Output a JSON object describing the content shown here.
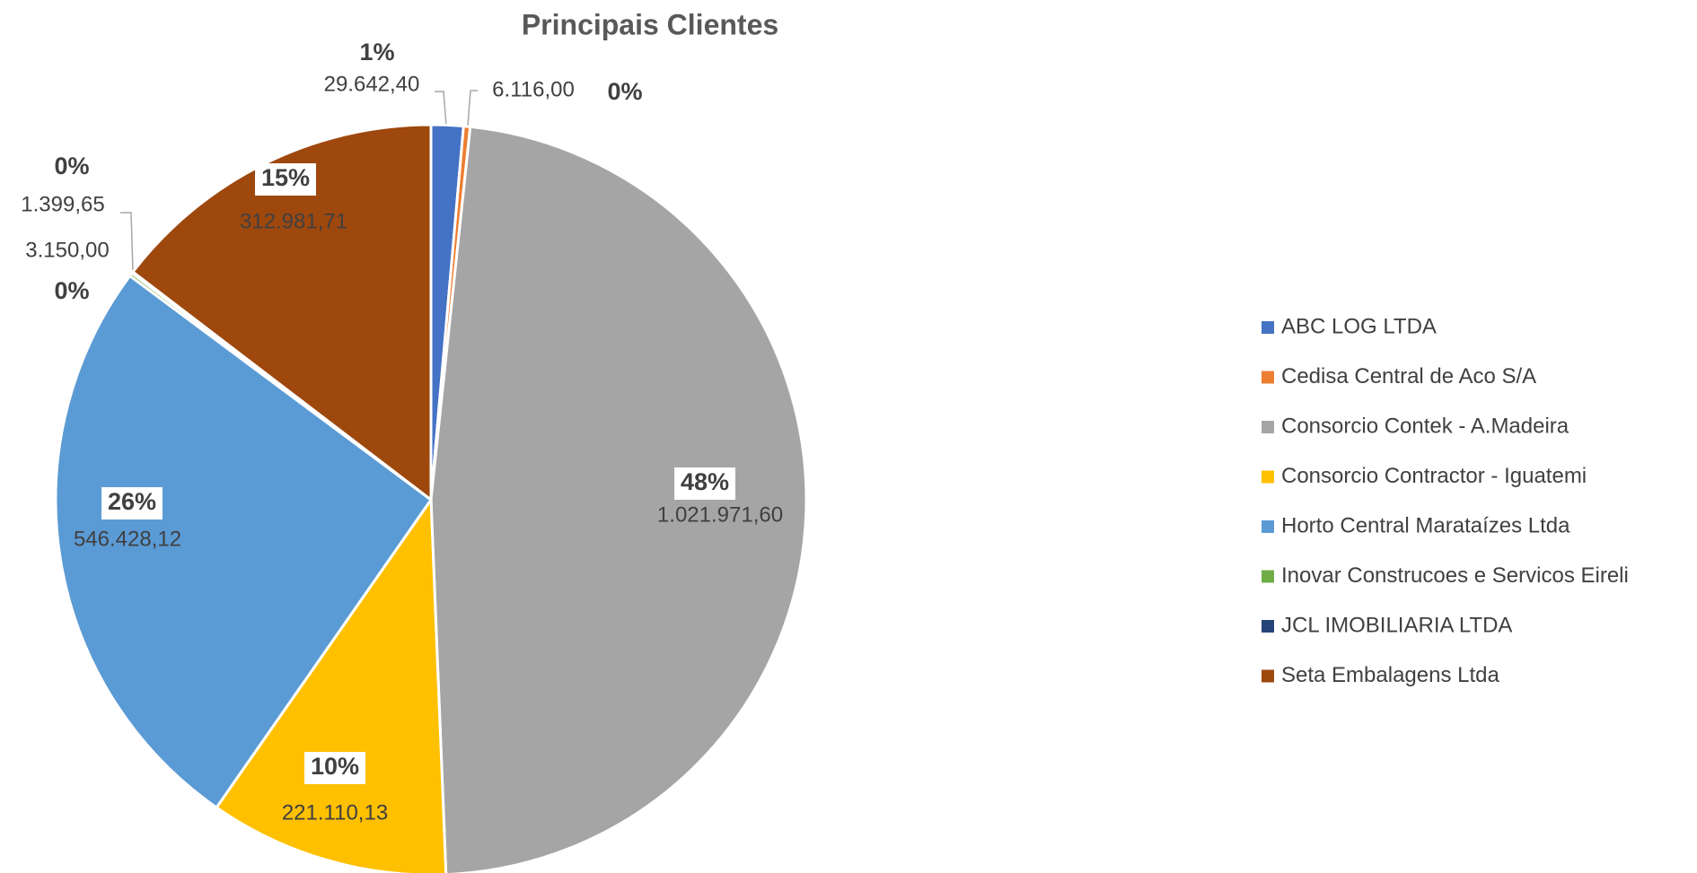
{
  "chart_data": {
    "type": "pie",
    "title": "Principais Clientes",
    "categories": [
      "ABC LOG LTDA",
      "Cedisa Central de Aco S/A",
      "Consorcio Contek - A.Madeira",
      "Consorcio Contractor - Iguatemi",
      "Horto Central Marataízes Ltda",
      "Inovar Construcoes e Servicos Eireli",
      "JCL IMOBILIARIA LTDA",
      "Seta Embalagens Ltda"
    ],
    "values": [
      29642.4,
      6116.0,
      1021971.6,
      221110.13,
      546428.12,
      3150.0,
      1399.65,
      312981.71
    ],
    "value_labels": [
      "29.642,40",
      "6.116,00",
      "1.021.971,60",
      "221.110,13",
      "546.428,12",
      "3.150,00",
      "1.399,65",
      "312.981,71"
    ],
    "percent_labels": [
      "1%",
      "0%",
      "48%",
      "10%",
      "26%",
      "0%",
      "0%",
      "15%"
    ],
    "colors": [
      "#4472c4",
      "#ed7d31",
      "#a5a5a5",
      "#ffc000",
      "#5b9bd5",
      "#70ad47",
      "#264478",
      "#9e480e"
    ],
    "legend": "right"
  }
}
